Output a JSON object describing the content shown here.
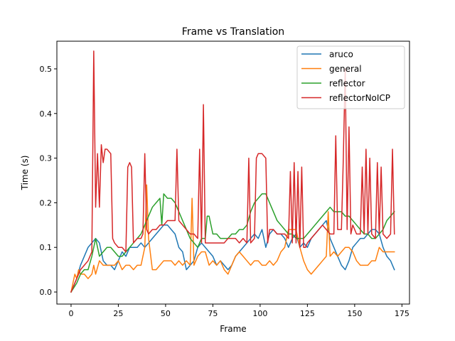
{
  "chart_data": {
    "type": "line",
    "title": "Frame vs Translation",
    "xlabel": "Frame",
    "ylabel": "Time (s)",
    "xlim": [
      -7.5,
      179
    ],
    "ylim": [
      -0.027,
      0.562
    ],
    "xticks": [
      0,
      25,
      50,
      75,
      100,
      125,
      150,
      175
    ],
    "xtick_labels": [
      "0",
      "25",
      "50",
      "75",
      "100",
      "125",
      "150",
      "175"
    ],
    "yticks": [
      0.0,
      0.1,
      0.2,
      0.3,
      0.4,
      0.5
    ],
    "ytick_labels": [
      "0.0",
      "0.1",
      "0.2",
      "0.3",
      "0.4",
      "0.5"
    ],
    "grid": false,
    "legend_position": "top-right",
    "series": [
      {
        "name": "aruco",
        "color": "#1f77b4",
        "x": [
          0,
          3,
          5,
          7,
          9,
          11,
          13,
          15,
          17,
          19,
          21,
          23,
          25,
          27,
          29,
          31,
          33,
          35,
          37,
          39,
          41,
          43,
          45,
          47,
          49,
          51,
          53,
          55,
          57,
          59,
          61,
          63,
          65,
          67,
          69,
          71,
          73,
          75,
          77,
          79,
          81,
          83,
          85,
          87,
          89,
          91,
          93,
          95,
          97,
          99,
          101,
          103,
          105,
          107,
          109,
          111,
          113,
          115,
          117,
          119,
          121,
          123,
          125,
          127,
          129,
          131,
          133,
          135,
          137,
          139,
          141,
          143,
          145,
          147,
          149,
          151,
          153,
          155,
          157,
          159,
          161,
          163,
          165,
          167,
          169,
          171
        ],
        "values": [
          0.0,
          0.03,
          0.06,
          0.08,
          0.1,
          0.11,
          0.12,
          0.11,
          0.07,
          0.06,
          0.06,
          0.05,
          0.07,
          0.09,
          0.08,
          0.1,
          0.1,
          0.1,
          0.11,
          0.1,
          0.11,
          0.12,
          0.13,
          0.14,
          0.15,
          0.15,
          0.14,
          0.13,
          0.1,
          0.09,
          0.05,
          0.06,
          0.07,
          0.1,
          0.11,
          0.1,
          0.09,
          0.08,
          0.06,
          0.07,
          0.06,
          0.05,
          0.06,
          0.08,
          0.09,
          0.1,
          0.11,
          0.12,
          0.13,
          0.12,
          0.14,
          0.1,
          0.13,
          0.14,
          0.13,
          0.13,
          0.12,
          0.1,
          0.12,
          0.13,
          0.1,
          0.11,
          0.1,
          0.12,
          0.13,
          0.14,
          0.15,
          0.16,
          0.12,
          0.1,
          0.08,
          0.06,
          0.05,
          0.07,
          0.1,
          0.11,
          0.12,
          0.12,
          0.13,
          0.14,
          0.14,
          0.13,
          0.1,
          0.08,
          0.07,
          0.05
        ]
      },
      {
        "name": "general",
        "color": "#ff7f0e",
        "x": [
          0,
          1,
          2,
          3,
          4,
          5,
          7,
          9,
          11,
          12,
          13,
          15,
          17,
          19,
          21,
          23,
          25,
          27,
          29,
          31,
          33,
          35,
          37,
          39,
          40,
          41,
          43,
          45,
          47,
          49,
          51,
          53,
          55,
          57,
          59,
          61,
          63,
          64,
          65,
          67,
          69,
          71,
          73,
          75,
          77,
          79,
          81,
          83,
          85,
          87,
          89,
          91,
          93,
          95,
          97,
          99,
          101,
          103,
          105,
          107,
          109,
          111,
          113,
          115,
          117,
          119,
          121,
          123,
          125,
          127,
          129,
          131,
          133,
          135,
          136,
          137,
          139,
          141,
          143,
          145,
          147,
          149,
          151,
          153,
          155,
          157,
          159,
          161,
          163,
          165,
          167,
          169,
          171
        ],
        "values": [
          0.0,
          0.02,
          0.04,
          0.03,
          0.05,
          0.04,
          0.04,
          0.03,
          0.04,
          0.06,
          0.04,
          0.07,
          0.06,
          0.06,
          0.06,
          0.06,
          0.07,
          0.05,
          0.06,
          0.06,
          0.05,
          0.06,
          0.06,
          0.1,
          0.24,
          0.12,
          0.05,
          0.05,
          0.06,
          0.07,
          0.07,
          0.07,
          0.06,
          0.07,
          0.06,
          0.07,
          0.06,
          0.21,
          0.06,
          0.08,
          0.09,
          0.09,
          0.06,
          0.07,
          0.06,
          0.07,
          0.05,
          0.04,
          0.06,
          0.08,
          0.09,
          0.08,
          0.07,
          0.06,
          0.07,
          0.07,
          0.06,
          0.06,
          0.07,
          0.06,
          0.07,
          0.09,
          0.1,
          0.14,
          0.14,
          0.14,
          0.1,
          0.07,
          0.05,
          0.04,
          0.05,
          0.06,
          0.07,
          0.08,
          0.18,
          0.08,
          0.09,
          0.08,
          0.09,
          0.1,
          0.1,
          0.09,
          0.07,
          0.06,
          0.06,
          0.06,
          0.07,
          0.07,
          0.1,
          0.09,
          0.09,
          0.09,
          0.09
        ]
      },
      {
        "name": "reflector",
        "color": "#2ca02c",
        "x": [
          0,
          3,
          5,
          7,
          9,
          11,
          13,
          15,
          17,
          19,
          21,
          23,
          25,
          27,
          29,
          31,
          33,
          35,
          37,
          39,
          41,
          43,
          45,
          47,
          48,
          49,
          51,
          53,
          55,
          57,
          59,
          61,
          63,
          65,
          67,
          69,
          71,
          72,
          73,
          75,
          77,
          79,
          81,
          83,
          85,
          87,
          89,
          91,
          93,
          95,
          97,
          99,
          101,
          103,
          105,
          107,
          109,
          111,
          113,
          115,
          117,
          119,
          121,
          123,
          125,
          127,
          129,
          131,
          133,
          135,
          137,
          139,
          141,
          143,
          145,
          147,
          149,
          151,
          153,
          155,
          157,
          159,
          161,
          163,
          165,
          167,
          169,
          171
        ],
        "values": [
          0.0,
          0.02,
          0.04,
          0.05,
          0.05,
          0.08,
          0.12,
          0.08,
          0.09,
          0.1,
          0.1,
          0.09,
          0.08,
          0.08,
          0.09,
          0.1,
          0.11,
          0.12,
          0.13,
          0.15,
          0.17,
          0.19,
          0.2,
          0.21,
          0.15,
          0.22,
          0.21,
          0.21,
          0.2,
          0.18,
          0.16,
          0.14,
          0.12,
          0.11,
          0.1,
          0.12,
          0.12,
          0.17,
          0.17,
          0.13,
          0.13,
          0.12,
          0.12,
          0.12,
          0.13,
          0.13,
          0.14,
          0.14,
          0.15,
          0.18,
          0.2,
          0.21,
          0.22,
          0.22,
          0.2,
          0.18,
          0.16,
          0.15,
          0.14,
          0.13,
          0.13,
          0.12,
          0.12,
          0.12,
          0.13,
          0.14,
          0.15,
          0.16,
          0.17,
          0.18,
          0.19,
          0.18,
          0.18,
          0.18,
          0.17,
          0.17,
          0.16,
          0.15,
          0.14,
          0.13,
          0.13,
          0.12,
          0.12,
          0.13,
          0.14,
          0.16,
          0.17,
          0.18
        ]
      },
      {
        "name": "reflectorNoICP",
        "color": "#d62728",
        "x": [
          0,
          3,
          5,
          7,
          9,
          11,
          12,
          13,
          14,
          15,
          16,
          17,
          18,
          19,
          21,
          22,
          23,
          25,
          27,
          29,
          30,
          31,
          32,
          33,
          35,
          37,
          38,
          39,
          40,
          41,
          43,
          45,
          47,
          49,
          51,
          53,
          55,
          56,
          57,
          59,
          61,
          63,
          65,
          67,
          68,
          69,
          70,
          71,
          73,
          75,
          77,
          79,
          81,
          83,
          85,
          87,
          89,
          91,
          93,
          94,
          95,
          97,
          98,
          99,
          101,
          103,
          104,
          105,
          107,
          109,
          111,
          113,
          115,
          116,
          117,
          118,
          119,
          120,
          121,
          122,
          123,
          124,
          125,
          127,
          129,
          131,
          133,
          135,
          137,
          139,
          140,
          141,
          143,
          144,
          145,
          146,
          147,
          148,
          149,
          151,
          153,
          154,
          155,
          156,
          157,
          158,
          159,
          161,
          162,
          163,
          164,
          165,
          167,
          169,
          170,
          171
        ],
        "values": [
          0.0,
          0.03,
          0.05,
          0.06,
          0.07,
          0.09,
          0.54,
          0.19,
          0.31,
          0.19,
          0.33,
          0.29,
          0.32,
          0.32,
          0.31,
          0.12,
          0.11,
          0.1,
          0.1,
          0.09,
          0.28,
          0.29,
          0.28,
          0.11,
          0.12,
          0.12,
          0.13,
          0.31,
          0.14,
          0.13,
          0.14,
          0.14,
          0.15,
          0.15,
          0.16,
          0.16,
          0.16,
          0.32,
          0.16,
          0.15,
          0.14,
          0.13,
          0.13,
          0.12,
          0.32,
          0.11,
          0.42,
          0.11,
          0.11,
          0.11,
          0.11,
          0.11,
          0.11,
          0.12,
          0.12,
          0.12,
          0.11,
          0.12,
          0.11,
          0.3,
          0.11,
          0.12,
          0.3,
          0.31,
          0.31,
          0.3,
          0.11,
          0.14,
          0.14,
          0.13,
          0.13,
          0.13,
          0.12,
          0.27,
          0.11,
          0.29,
          0.11,
          0.27,
          0.1,
          0.28,
          0.1,
          0.1,
          0.11,
          0.12,
          0.13,
          0.14,
          0.15,
          0.14,
          0.13,
          0.13,
          0.35,
          0.14,
          0.14,
          0.3,
          0.5,
          0.14,
          0.37,
          0.13,
          0.15,
          0.13,
          0.13,
          0.28,
          0.13,
          0.32,
          0.13,
          0.3,
          0.13,
          0.12,
          0.29,
          0.13,
          0.28,
          0.13,
          0.12,
          0.13,
          0.32,
          0.13
        ]
      }
    ]
  }
}
